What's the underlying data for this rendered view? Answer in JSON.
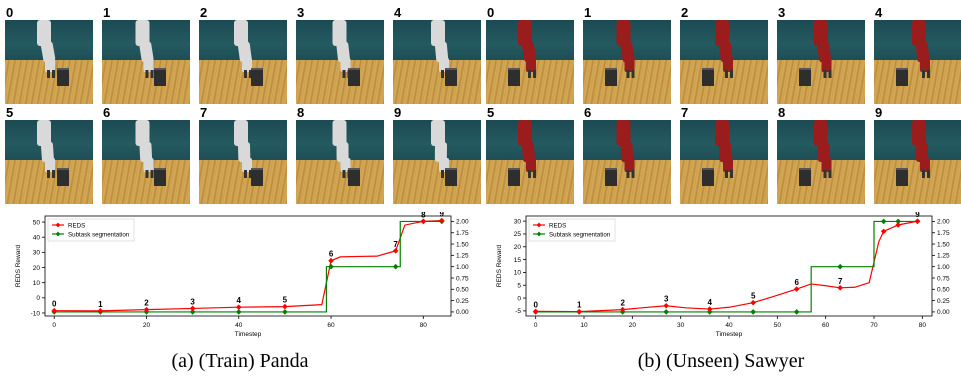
{
  "panels": [
    {
      "id": "a",
      "caption": "(a) (Train) Panda",
      "robot_color": "#d9d9d9",
      "frames": [
        "0",
        "1",
        "2",
        "3",
        "4",
        "5",
        "6",
        "7",
        "8",
        "9"
      ]
    },
    {
      "id": "b",
      "caption": "(b) (Unseen) Sawyer",
      "robot_color": "#9b1c1c",
      "frames": [
        "0",
        "1",
        "2",
        "3",
        "4",
        "5",
        "6",
        "7",
        "8",
        "9"
      ]
    }
  ],
  "chart_data": [
    {
      "type": "line",
      "xlabel": "Timestep",
      "ylabel": "REDS Reward",
      "y2label": "Subtask segmentation",
      "xlim": [
        -2,
        86
      ],
      "ylim": [
        -12,
        54
      ],
      "y2lim": [
        -0.09,
        2.12
      ],
      "xticks": [
        "0",
        "20",
        "40",
        "60",
        "80"
      ],
      "yticks": [
        "-10",
        "0",
        "10",
        "20",
        "30",
        "40",
        "50"
      ],
      "y2ticks": [
        "0.00",
        "0.25",
        "0.50",
        "0.75",
        "1.00",
        "1.25",
        "1.50",
        "1.75",
        "2.00"
      ],
      "legend": "top-left",
      "colors": {
        "reds": "#ff0000",
        "subtask": "#008000"
      },
      "series": [
        {
          "name": "REDS",
          "axis": "left",
          "x": [
            0,
            10,
            20,
            30,
            40,
            50,
            58,
            60,
            62,
            66,
            70,
            74,
            76,
            80,
            84
          ],
          "y": [
            -8.5,
            -8.6,
            -7.8,
            -7.0,
            -6.2,
            -5.8,
            -4.5,
            24.5,
            27.0,
            27.3,
            27.5,
            31.0,
            48.0,
            50.5,
            51.0
          ]
        },
        {
          "name": "Subtask segmentation",
          "axis": "right",
          "x": [
            0,
            59,
            59,
            75,
            75,
            84
          ],
          "y": [
            0.0,
            0.0,
            1.0,
            1.0,
            2.0,
            2.0
          ]
        }
      ],
      "reds_markers": {
        "x": [
          0,
          10,
          20,
          30,
          40,
          50,
          60,
          74,
          80,
          84
        ],
        "y": [
          -8.5,
          -8.6,
          -7.8,
          -7.0,
          -6.2,
          -5.8,
          24.5,
          31.0,
          50.5,
          51.0
        ]
      },
      "subtask_markers": {
        "x": [
          0,
          10,
          20,
          30,
          40,
          50,
          60,
          74,
          80,
          84
        ],
        "y": [
          0,
          0,
          0,
          0,
          0,
          0,
          1.0,
          1.0,
          2.0,
          2.0
        ]
      },
      "annotations": [
        "0",
        "1",
        "2",
        "3",
        "4",
        "5",
        "6",
        "7",
        "8",
        "9"
      ]
    },
    {
      "type": "line",
      "xlabel": "Timestep",
      "ylabel": "REDS Reward",
      "y2label": "Subtask segmentation",
      "xlim": [
        -2,
        82
      ],
      "ylim": [
        -7,
        32
      ],
      "y2lim": [
        -0.09,
        2.12
      ],
      "xticks": [
        "0",
        "10",
        "20",
        "30",
        "40",
        "50",
        "60",
        "70",
        "80"
      ],
      "yticks": [
        "-5",
        "0",
        "5",
        "10",
        "15",
        "20",
        "25",
        "30"
      ],
      "y2ticks": [
        "0.00",
        "0.25",
        "0.50",
        "0.75",
        "1.00",
        "1.25",
        "1.50",
        "1.75",
        "2.00"
      ],
      "legend": "top-left",
      "colors": {
        "reds": "#ff0000",
        "subtask": "#008000"
      },
      "series": [
        {
          "name": "REDS",
          "axis": "left",
          "x": [
            0,
            9,
            18,
            22,
            27,
            31,
            36,
            40,
            45,
            49,
            54,
            57,
            60,
            63,
            66,
            69,
            71,
            72,
            75,
            79
          ],
          "y": [
            -5.2,
            -5.3,
            -4.5,
            -3.8,
            -3.0,
            -3.8,
            -4.3,
            -3.6,
            -1.8,
            0.5,
            3.5,
            5.5,
            4.8,
            4.0,
            4.2,
            6.0,
            22.0,
            26.0,
            28.5,
            30.0
          ]
        },
        {
          "name": "Subtask segmentation",
          "axis": "right",
          "x": [
            0,
            54,
            54,
            57,
            57,
            63,
            63,
            70,
            70,
            79
          ],
          "y": [
            0.0,
            0.0,
            0.0,
            0.0,
            1.0,
            1.0,
            1.0,
            1.0,
            2.0,
            2.0
          ]
        }
      ],
      "reds_markers": {
        "x": [
          0,
          9,
          18,
          27,
          36,
          45,
          54,
          63,
          72,
          75,
          79
        ],
        "y": [
          -5.2,
          -5.3,
          -4.5,
          -3.0,
          -4.3,
          -1.8,
          3.5,
          4.0,
          26.0,
          28.5,
          30.0
        ]
      },
      "subtask_markers": {
        "x": [
          0,
          9,
          18,
          27,
          36,
          45,
          54,
          63,
          72,
          75,
          79
        ],
        "y": [
          0,
          0,
          0,
          0,
          0,
          0,
          0,
          1.0,
          2.0,
          2.0,
          2.0
        ]
      },
      "annotations": [
        "0",
        "1",
        "2",
        "3",
        "4",
        "5",
        "6",
        "7",
        "8",
        "9"
      ]
    }
  ]
}
